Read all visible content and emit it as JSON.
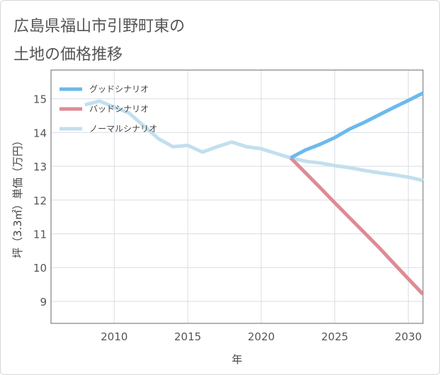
{
  "title_lines": [
    "広島県福山市引野町東の",
    "土地の価格推移"
  ],
  "chart_data": {
    "type": "line",
    "xlabel": "年",
    "ylabel": "坪（3.3㎡）単価（万円）",
    "xlim": [
      2005.7,
      2031
    ],
    "ylim": [
      8.35,
      15.85
    ],
    "x_ticks": [
      2010,
      2015,
      2020,
      2025,
      2030
    ],
    "y_ticks": [
      9,
      10,
      11,
      12,
      13,
      14,
      15
    ],
    "grid": true,
    "legend_position": "top-left",
    "series": [
      {
        "name": "グッドシナリオ",
        "color": "#6cb9ec",
        "x": [
          2022,
          2023,
          2024,
          2025,
          2026,
          2027,
          2028,
          2029,
          2030,
          2031
        ],
        "y": [
          13.25,
          13.48,
          13.65,
          13.85,
          14.1,
          14.3,
          14.52,
          14.74,
          14.95,
          15.17
        ]
      },
      {
        "name": "バッドシナリオ",
        "color": "#de8b94",
        "x": [
          2022,
          2023,
          2024,
          2025,
          2026,
          2027,
          2028,
          2029,
          2030,
          2031
        ],
        "y": [
          13.25,
          12.81,
          12.37,
          11.92,
          11.48,
          11.04,
          10.6,
          10.13,
          9.67,
          9.21
        ]
      },
      {
        "name": "ノーマルシナリオ",
        "color": "#c3dfee",
        "x": [
          2008,
          2009,
          2010,
          2011,
          2012,
          2013,
          2014,
          2015,
          2016,
          2017,
          2018,
          2019,
          2020,
          2021,
          2022,
          2023,
          2024,
          2025,
          2026,
          2027,
          2028,
          2029,
          2030,
          2031
        ],
        "y": [
          14.82,
          14.93,
          14.75,
          14.58,
          14.2,
          13.82,
          13.58,
          13.62,
          13.42,
          13.58,
          13.72,
          13.58,
          13.52,
          13.38,
          13.25,
          13.15,
          13.1,
          13.02,
          12.96,
          12.88,
          12.81,
          12.75,
          12.68,
          12.58
        ]
      }
    ]
  }
}
